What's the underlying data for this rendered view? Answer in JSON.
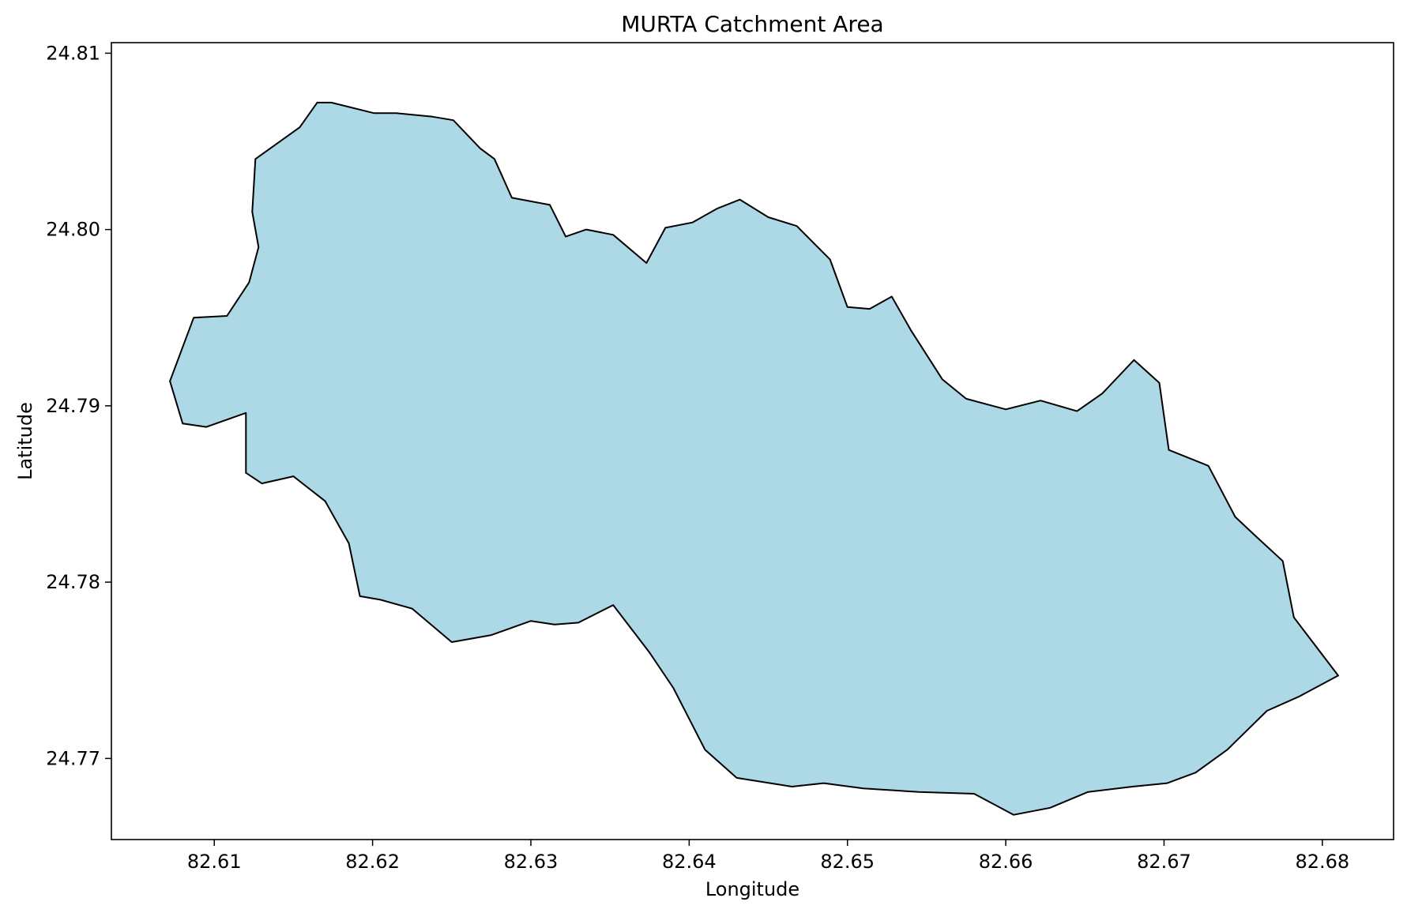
{
  "chart_data": {
    "type": "area",
    "title": "MURTA Catchment Area",
    "xlabel": "Longitude",
    "ylabel": "Latitude",
    "xlim": [
      82.6035,
      82.6845
    ],
    "ylim": [
      24.7654,
      24.8106
    ],
    "xticks": [
      82.61,
      82.62,
      82.63,
      82.64,
      82.65,
      82.66,
      82.67,
      82.68
    ],
    "xtick_labels": [
      "82.61",
      "82.62",
      "82.63",
      "82.64",
      "82.65",
      "82.66",
      "82.67",
      "82.68"
    ],
    "yticks": [
      24.77,
      24.78,
      24.79,
      24.8,
      24.81
    ],
    "ytick_labels": [
      "24.77",
      "24.78",
      "24.79",
      "24.80",
      "24.81"
    ],
    "grid": false,
    "legend": "none",
    "fill_color": "#add8e6",
    "edge_color": "#000000",
    "series": [
      {
        "x": [
          82.6072,
          82.6087,
          82.6108,
          82.6122,
          82.6128,
          82.6124,
          82.6126,
          82.6154,
          82.6165,
          82.6174,
          82.6201,
          82.6215,
          82.6238,
          82.6251,
          82.6268,
          82.6277,
          82.6288,
          82.6312,
          82.6322,
          82.6335,
          82.6352,
          82.6373,
          82.6385,
          82.6402,
          82.6418,
          82.6432,
          82.645,
          82.6468,
          82.6489,
          82.65,
          82.6514,
          82.6528,
          82.654,
          82.656,
          82.6575,
          82.66,
          82.6622,
          82.6645,
          82.6661,
          82.6681,
          82.6697,
          82.6703,
          82.6728,
          82.6745,
          82.6758,
          82.6775,
          82.6782,
          82.681,
          82.6785,
          82.6765,
          82.674,
          82.672,
          82.6702,
          82.668,
          82.6652,
          82.6628,
          82.6605,
          82.658,
          82.6545,
          82.651,
          82.6485,
          82.6465,
          82.643,
          82.641,
          82.639,
          82.6375,
          82.6352,
          82.633,
          82.6315,
          82.63,
          82.6275,
          82.625,
          82.6225,
          82.6205,
          82.6192,
          82.6185,
          82.617,
          82.615,
          82.613,
          82.612,
          82.612,
          82.6095,
          82.608,
          82.6072
        ],
        "y": [
          24.7914,
          24.795,
          24.7951,
          24.797,
          24.799,
          24.801,
          24.804,
          24.8058,
          24.8072,
          24.8072,
          24.8066,
          24.8066,
          24.8064,
          24.8062,
          24.8046,
          24.804,
          24.8018,
          24.8014,
          24.7996,
          24.8,
          24.7997,
          24.7981,
          24.8001,
          24.8004,
          24.8012,
          24.8017,
          24.8007,
          24.8002,
          24.7983,
          24.7956,
          24.7955,
          24.7962,
          24.7943,
          24.7915,
          24.7904,
          24.7898,
          24.7903,
          24.7897,
          24.7907,
          24.7926,
          24.7913,
          24.7875,
          24.7866,
          24.7837,
          24.7826,
          24.7812,
          24.778,
          24.7747,
          24.7735,
          24.7727,
          24.7705,
          24.7692,
          24.7686,
          24.7684,
          24.7681,
          24.7672,
          24.7668,
          24.768,
          24.7681,
          24.7683,
          24.7686,
          24.7684,
          24.7689,
          24.7705,
          24.774,
          24.776,
          24.7787,
          24.7777,
          24.7776,
          24.7778,
          24.777,
          24.7766,
          24.7785,
          24.779,
          24.7792,
          24.7822,
          24.7846,
          24.786,
          24.7856,
          24.7862,
          24.7896,
          24.7888,
          24.789,
          24.7914
        ]
      }
    ]
  }
}
